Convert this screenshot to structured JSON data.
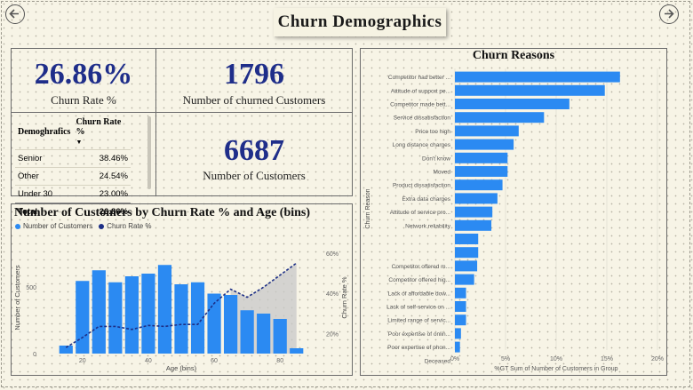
{
  "page": {
    "title": "Churn  Demographics"
  },
  "colors": {
    "accent": "#1f2e8a",
    "bar": "#2b8af2",
    "line": "#1d2f86",
    "shade": "#c8c8c8"
  },
  "nav": {
    "back_icon": "arrow-left-icon",
    "forward_icon": "arrow-right-icon"
  },
  "kpis": {
    "churn_rate": {
      "value": "26.86%",
      "label": "Churn Rate %"
    },
    "churned": {
      "value": "1796",
      "label": "Number  of churned Customers"
    },
    "customers": {
      "value": "6687",
      "label": "Number of Customers"
    }
  },
  "table": {
    "headers": [
      "Demoghrafics",
      "Churn Rate %"
    ],
    "rows": [
      {
        "label": "Senior",
        "value": "38.46%"
      },
      {
        "label": "Other",
        "value": "24.54%"
      },
      {
        "label": "Under 30",
        "value": "23.00%"
      }
    ],
    "total": {
      "label": "Total",
      "value": "26.86%"
    }
  },
  "chart_data": [
    {
      "type": "bar",
      "title": "Churn Reasons",
      "ylabel": "Churn Reason",
      "xlabel": "%GT Sum of Number of Customers in Group",
      "xlim": [
        0,
        0.2
      ],
      "xticks": [
        "0%",
        "5%",
        "10%",
        "15%",
        "20%"
      ],
      "categories": [
        "Competitor had better ...",
        "Attitude of support pe...",
        "Competitor made bett...",
        "Service dissatisfaction",
        "Price too high",
        "Long distance charges",
        "Don't know",
        "Moved",
        "Product dissatisfaction",
        "Extra data charges",
        "Attitude of service pro...",
        "Network reliability",
        "",
        "",
        "Competitor offered m...",
        "Competitor offered hig...",
        "Lack of affordable dow...",
        "Lack of self-service on ...",
        "Limited range of servic...",
        "Poor expertise of onlin...",
        "Poor expertise of phon...",
        "Deceased"
      ],
      "values": [
        0.163,
        0.148,
        0.113,
        0.088,
        0.063,
        0.058,
        0.052,
        0.052,
        0.047,
        0.042,
        0.037,
        0.036,
        0.023,
        0.023,
        0.022,
        0.019,
        0.011,
        0.011,
        0.011,
        0.006,
        0.005,
        0.0
      ]
    },
    {
      "type": "bar+line",
      "title": "Number of Customers by Churn Rate % and Age (bins)",
      "xlabel": "Age (bins)",
      "ylabel": "Number of Customers",
      "y2label": "Churn Rate %",
      "x": [
        15,
        20,
        25,
        30,
        35,
        40,
        45,
        50,
        55,
        60,
        65,
        70,
        75,
        80,
        85
      ],
      "xticks": [
        "20",
        "40",
        "60",
        "80"
      ],
      "yticks": [
        "0",
        "500"
      ],
      "ylim": [
        0,
        800
      ],
      "y2ticks": [
        "20%",
        "40%",
        "60%"
      ],
      "y2lim": [
        0.1,
        0.63
      ],
      "series": [
        {
          "name": "Number of Customers",
          "type": "bar",
          "values": [
            60,
            545,
            625,
            535,
            580,
            600,
            665,
            520,
            535,
            450,
            440,
            325,
            300,
            260,
            40
          ]
        },
        {
          "name": "Churn Rate %",
          "type": "line",
          "values": [
            0.13,
            0.18,
            0.235,
            0.235,
            0.22,
            0.24,
            0.235,
            0.245,
            0.245,
            0.35,
            0.42,
            0.38,
            0.43,
            0.49,
            0.55
          ]
        }
      ]
    }
  ]
}
